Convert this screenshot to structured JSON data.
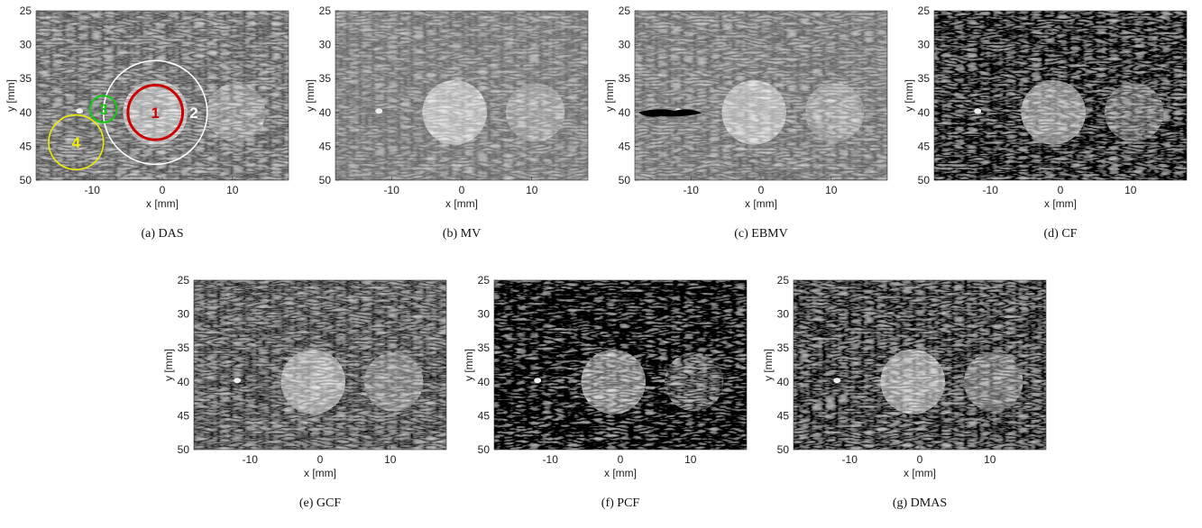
{
  "axes": {
    "x_label": "x [mm]",
    "y_label": "y [mm]",
    "xlim": [
      -18,
      18
    ],
    "ylim": [
      50,
      25
    ],
    "xticks": [
      -10,
      0,
      10
    ],
    "yticks": [
      25,
      30,
      35,
      40,
      45,
      50
    ]
  },
  "panels": [
    {
      "caption": "(a) DAS",
      "region_labels": [
        "1",
        "2",
        "3",
        "4"
      ]
    },
    {
      "caption": "(b) MV"
    },
    {
      "caption": "(c) EBMV"
    },
    {
      "caption": "(d) CF"
    },
    {
      "caption": "(e) GCF"
    },
    {
      "caption": "(f) PCF"
    },
    {
      "caption": "(g) DMAS"
    }
  ]
}
